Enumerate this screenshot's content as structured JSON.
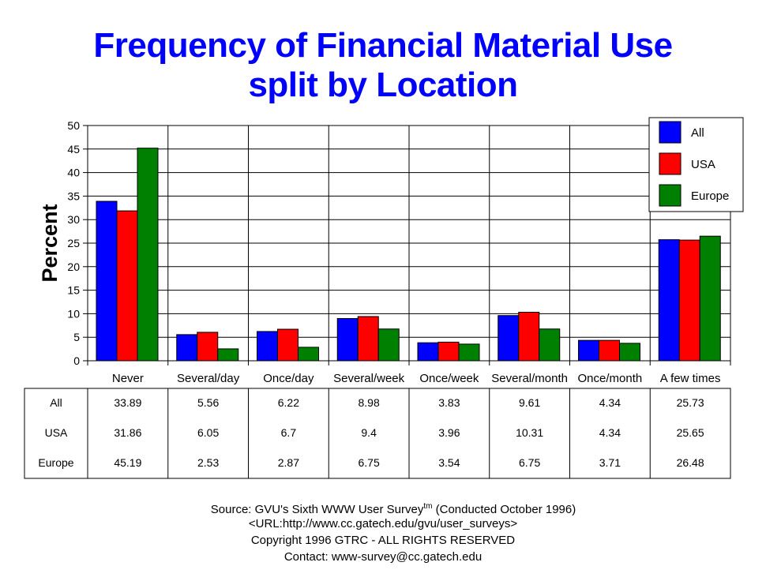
{
  "title_line1": "Frequency of Financial Material Use",
  "title_line2": "split by Location",
  "chart_data": {
    "type": "bar",
    "title": "Frequency of Financial Material Use split by Location",
    "xlabel": "",
    "ylabel": "Percent",
    "ylim": [
      0,
      50
    ],
    "yticks": [
      0,
      5,
      10,
      15,
      20,
      25,
      30,
      35,
      40,
      45,
      50
    ],
    "grid": "horizontal",
    "legend_position": "top-right",
    "categories": [
      "Never",
      "Several/day",
      "Once/day",
      "Several/week",
      "Once/week",
      "Several/month",
      "Once/month",
      "A few times"
    ],
    "series": [
      {
        "name": "All",
        "color": "#0000ff",
        "values": [
          33.89,
          5.56,
          6.22,
          8.98,
          3.83,
          9.61,
          4.34,
          25.73
        ],
        "labels": [
          "33.89",
          "5.56",
          "6.22",
          "8.98",
          "3.83",
          "9.61",
          "4.34",
          "25.73"
        ]
      },
      {
        "name": "USA",
        "color": "#ff0000",
        "values": [
          31.86,
          6.05,
          6.7,
          9.4,
          3.96,
          10.31,
          4.34,
          25.65
        ],
        "labels": [
          "31.86",
          "6.05",
          "6.7",
          "9.4",
          "3.96",
          "10.31",
          "4.34",
          "25.65"
        ]
      },
      {
        "name": "Europe",
        "color": "#008000",
        "values": [
          45.19,
          2.53,
          2.87,
          6.75,
          3.54,
          6.75,
          3.71,
          26.48
        ],
        "labels": [
          "45.19",
          "2.53",
          "2.87",
          "6.75",
          "3.54",
          "6.75",
          "3.71",
          "26.48"
        ]
      }
    ]
  },
  "footer": {
    "source_prefix": "Source: GVU's Sixth WWW User Survey",
    "source_sup": "tm",
    "source_suffix": "  (Conducted October 1996)",
    "url": "<URL:http://www.cc.gatech.edu/gvu/user_surveys>",
    "copyright": "Copyright 1996 GTRC -  ALL RIGHTS RESERVED",
    "contact": "Contact: www-survey@cc.gatech.edu"
  }
}
